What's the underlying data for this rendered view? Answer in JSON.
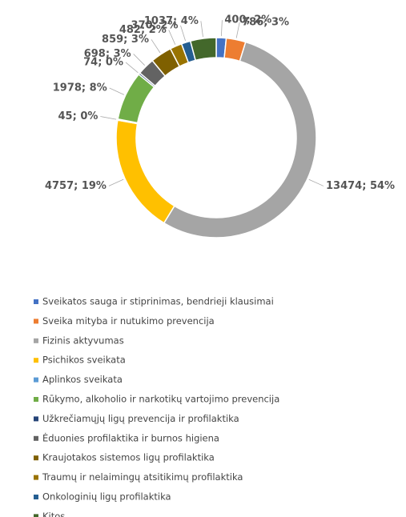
{
  "chart_data": {
    "type": "donut",
    "series": [
      {
        "name": "Sveikatos sauga ir stiprinimas, bendrieji klausimai",
        "color": "#4472c4",
        "values": [
          400
        ],
        "value_labels": [
          "400; 2%"
        ]
      },
      {
        "name": "Sveika mityba ir nutukimo prevencija",
        "color": "#ed7d31",
        "values": [
          786
        ],
        "value_labels": [
          "786; 3%"
        ]
      },
      {
        "name": "Fizinis aktyvumas",
        "color": "#a5a5a5",
        "values": [
          13474
        ],
        "value_labels": [
          "13474; 54%"
        ]
      },
      {
        "name": "Psichikos sveikata",
        "color": "#ffc000",
        "values": [
          4757
        ],
        "value_labels": [
          "4757; 19%"
        ]
      },
      {
        "name": "Aplinkos sveikata",
        "color": "#5b9bd5",
        "values": [
          45
        ],
        "value_labels": [
          "45; 0%"
        ]
      },
      {
        "name": "Rūkymo, alkoholio ir narkotikų vartojimo prevencija",
        "color": "#70ad47",
        "values": [
          1978
        ],
        "value_labels": [
          "1978; 8%"
        ]
      },
      {
        "name": "Užkrečiamųjų ligų prevencija ir profilaktika",
        "color": "#264478",
        "values": [
          74
        ],
        "value_labels": [
          "74; 0%"
        ]
      },
      {
        "name": "Ėduonies profilaktika ir burnos higiena",
        "color": "#636363",
        "values": [
          698
        ],
        "value_labels": [
          "698; 3%"
        ]
      },
      {
        "name": "Kraujotakos sistemos ligų profilaktika",
        "color": "#7f6000",
        "values": [
          859
        ],
        "value_labels": [
          "859; 3%"
        ]
      },
      {
        "name": "Traumų ir nelaimingų atsitikimų profilaktika",
        "color": "#997300",
        "values": [
          482
        ],
        "value_labels": [
          "482; 2%"
        ]
      },
      {
        "name": "Onkologinių ligų profilaktika",
        "color": "#255e91",
        "values": [
          370
        ],
        "value_labels": [
          "370; 2%"
        ]
      },
      {
        "name": "Kitos",
        "color": "#43682b",
        "values": [
          1037
        ],
        "value_labels": [
          "1037; 4%"
        ]
      }
    ]
  }
}
